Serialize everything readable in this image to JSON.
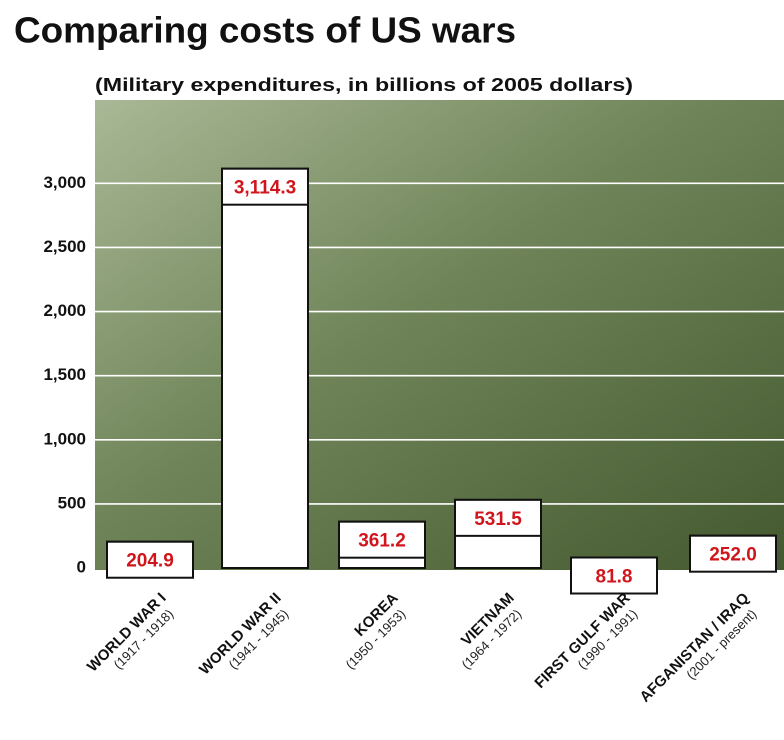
{
  "chart_data": {
    "type": "bar",
    "title": "Comparing costs of US wars",
    "subtitle": "(Military expenditures, in billions of 2005 dollars)",
    "categories": [
      "WORLD WAR I",
      "WORLD WAR II",
      "KOREA",
      "VIETNAM",
      "FIRST GULF WAR",
      "AFGANISTAN / IRAQ"
    ],
    "periods": [
      "(1917 - 1918)",
      "(1941 - 1945)",
      "(1950 - 1953)",
      "(1964 - 1972)",
      "(1990 - 1991)",
      "(2001 - present)"
    ],
    "values": [
      204.9,
      3114.3,
      361.2,
      531.5,
      81.8,
      252.0
    ],
    "value_labels": [
      "204.9",
      "3,114.3",
      "361.2",
      "531.5",
      "81.8",
      "252.0"
    ],
    "color": "#ffffff",
    "label_color": "#d0161c",
    "ylim": [
      0,
      3650
    ],
    "yticks": [
      0,
      500,
      {
        "value": 1000,
        "label": "1,000"
      },
      {
        "value": 1500,
        "label": "1,500"
      },
      {
        "value": 2000,
        "label": "2,000"
      },
      {
        "value": 2500,
        "label": "2,500"
      },
      {
        "value": 3000,
        "label": "3,000"
      }
    ],
    "grid": true
  }
}
